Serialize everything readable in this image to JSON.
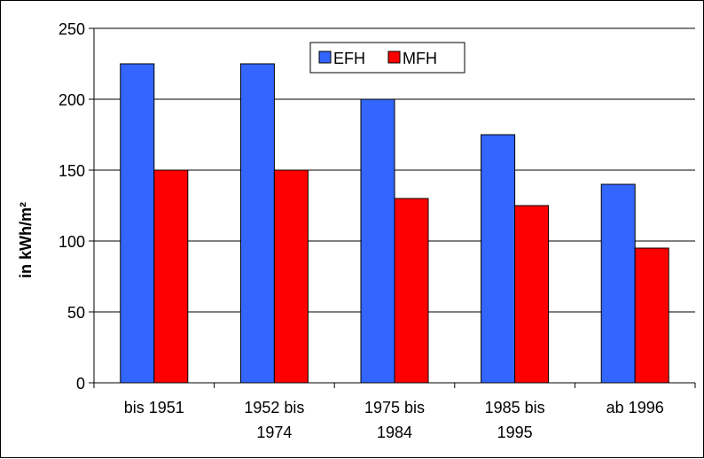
{
  "chart_data": {
    "type": "bar",
    "title": "",
    "xlabel": "",
    "ylabel": "in kWh/m²",
    "ylim": [
      0,
      250
    ],
    "yticks": [
      0,
      50,
      100,
      150,
      200,
      250
    ],
    "grid": true,
    "legend_position": "top-center",
    "categories": [
      [
        "bis 1951"
      ],
      [
        "1952 bis",
        "1974"
      ],
      [
        "1975 bis",
        "1984"
      ],
      [
        "1985 bis",
        "1995"
      ],
      [
        "ab 1996"
      ]
    ],
    "series": [
      {
        "name": "EFH",
        "color": "#3366FF",
        "values": [
          225,
          225,
          200,
          175,
          140
        ]
      },
      {
        "name": "MFH",
        "color": "#FF0000",
        "values": [
          150,
          150,
          130,
          125,
          95
        ]
      }
    ]
  }
}
